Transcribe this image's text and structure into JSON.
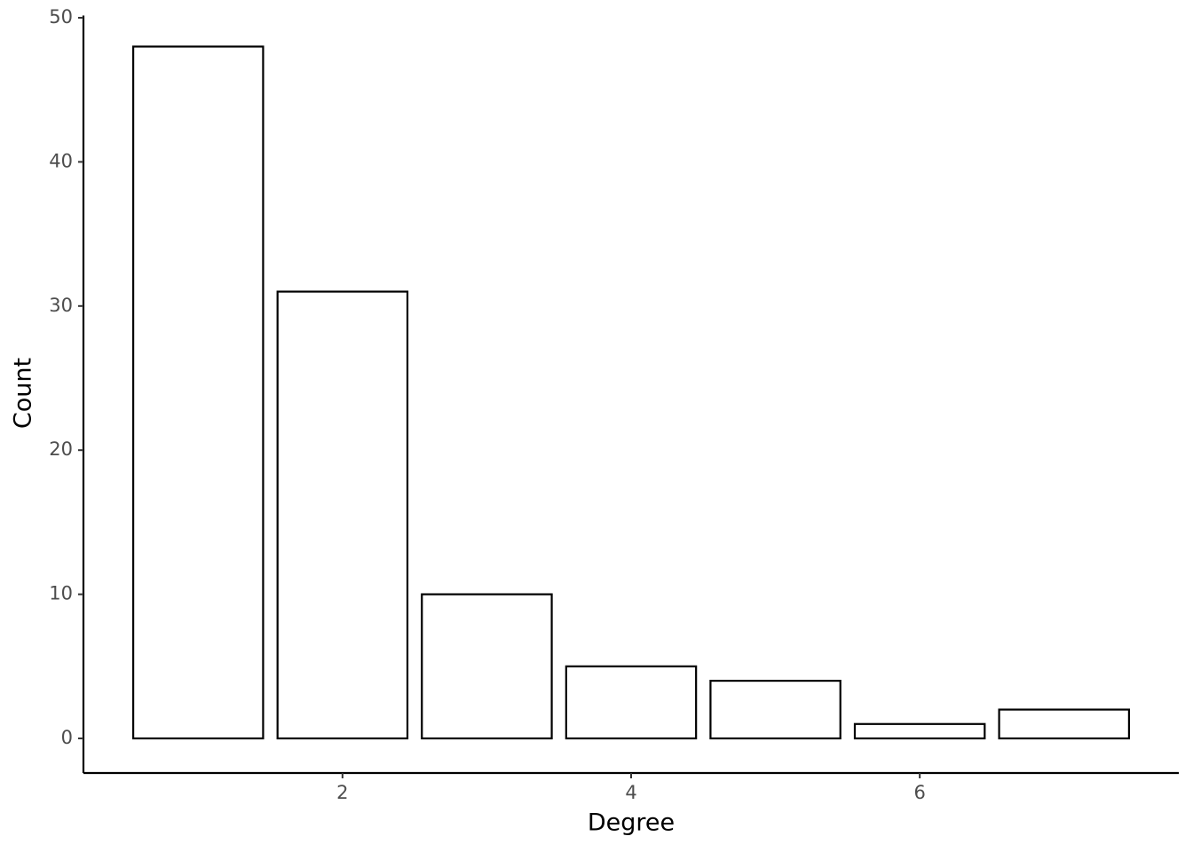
{
  "chart_data": {
    "type": "bar",
    "x_label": "Degree",
    "y_label": "Count",
    "x": [
      1,
      2,
      3,
      4,
      5,
      6,
      7
    ],
    "values": [
      48,
      31,
      10,
      5,
      4,
      1,
      2
    ],
    "color": "#ffffff",
    "edge_color": "#000000",
    "xlim": [
      0.205,
      7.795
    ],
    "xticks": [
      2,
      4,
      6
    ],
    "ylim": [
      -2.4,
      50.4
    ],
    "yticks": [
      0,
      10,
      20,
      30,
      40,
      50
    ],
    "grid": false
  }
}
